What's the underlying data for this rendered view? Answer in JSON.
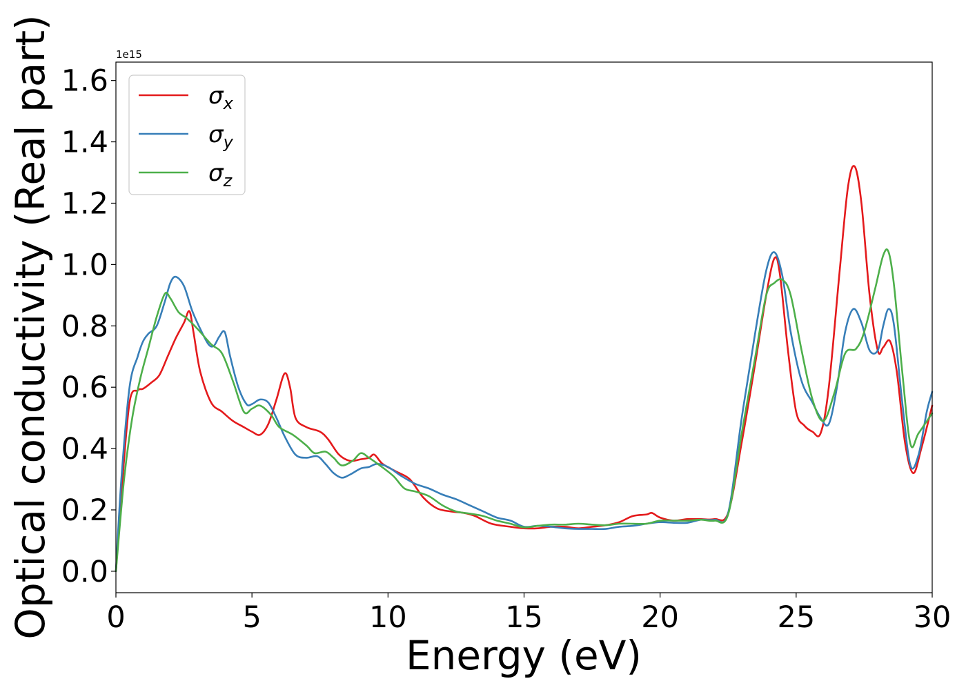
{
  "chart_data": {
    "type": "line",
    "title": "",
    "xlabel": "Energy (eV)",
    "ylabel": "Optical conductivity (Real part)",
    "y_offset_label": "1e15",
    "xlim": [
      0,
      30
    ],
    "ylim": [
      -0.07,
      1.66
    ],
    "xticks": [
      0,
      5,
      10,
      15,
      20,
      25,
      30
    ],
    "xtick_labels": [
      "0",
      "5",
      "10",
      "15",
      "20",
      "25",
      "30"
    ],
    "yticks": [
      0.0,
      0.2,
      0.4,
      0.6,
      0.8,
      1.0,
      1.2,
      1.4,
      1.6
    ],
    "ytick_labels": [
      "0.0",
      "0.2",
      "0.4",
      "0.6",
      "0.8",
      "1.0",
      "1.2",
      "1.4",
      "1.6"
    ],
    "grid": false,
    "legend_position": "upper-left",
    "series": [
      {
        "name": "σx",
        "symbol": "σ",
        "subscript": "x",
        "color": "#e41a1c",
        "points": [
          [
            0,
            0
          ],
          [
            0.2,
            0.25
          ],
          [
            0.5,
            0.55
          ],
          [
            0.8,
            0.59
          ],
          [
            1.0,
            0.595
          ],
          [
            1.3,
            0.615
          ],
          [
            1.6,
            0.64
          ],
          [
            1.9,
            0.7
          ],
          [
            2.2,
            0.76
          ],
          [
            2.5,
            0.81
          ],
          [
            2.7,
            0.848
          ],
          [
            2.85,
            0.78
          ],
          [
            3.1,
            0.65
          ],
          [
            3.5,
            0.55
          ],
          [
            3.9,
            0.52
          ],
          [
            4.3,
            0.49
          ],
          [
            4.7,
            0.47
          ],
          [
            5.0,
            0.455
          ],
          [
            5.3,
            0.445
          ],
          [
            5.6,
            0.48
          ],
          [
            5.9,
            0.56
          ],
          [
            6.2,
            0.645
          ],
          [
            6.4,
            0.6
          ],
          [
            6.6,
            0.5
          ],
          [
            7.0,
            0.47
          ],
          [
            7.5,
            0.455
          ],
          [
            7.8,
            0.43
          ],
          [
            8.2,
            0.38
          ],
          [
            8.6,
            0.36
          ],
          [
            9.0,
            0.365
          ],
          [
            9.3,
            0.37
          ],
          [
            9.5,
            0.38
          ],
          [
            9.8,
            0.35
          ],
          [
            10.3,
            0.325
          ],
          [
            10.8,
            0.3
          ],
          [
            11.3,
            0.24
          ],
          [
            11.8,
            0.205
          ],
          [
            12.3,
            0.195
          ],
          [
            12.8,
            0.19
          ],
          [
            13.2,
            0.18
          ],
          [
            13.8,
            0.155
          ],
          [
            14.5,
            0.145
          ],
          [
            15.0,
            0.14
          ],
          [
            15.5,
            0.14
          ],
          [
            16.0,
            0.145
          ],
          [
            16.5,
            0.145
          ],
          [
            17.0,
            0.14
          ],
          [
            17.5,
            0.145
          ],
          [
            18.0,
            0.15
          ],
          [
            18.5,
            0.16
          ],
          [
            19.0,
            0.18
          ],
          [
            19.5,
            0.185
          ],
          [
            19.7,
            0.19
          ],
          [
            20.0,
            0.175
          ],
          [
            20.5,
            0.165
          ],
          [
            21.0,
            0.17
          ],
          [
            21.5,
            0.17
          ],
          [
            22.0,
            0.17
          ],
          [
            22.5,
            0.19
          ],
          [
            23.0,
            0.42
          ],
          [
            23.5,
            0.68
          ],
          [
            23.9,
            0.9
          ],
          [
            24.2,
            1.02
          ],
          [
            24.4,
            0.97
          ],
          [
            24.7,
            0.72
          ],
          [
            25.0,
            0.52
          ],
          [
            25.3,
            0.475
          ],
          [
            25.6,
            0.455
          ],
          [
            25.9,
            0.45
          ],
          [
            26.2,
            0.6
          ],
          [
            26.6,
            0.98
          ],
          [
            26.9,
            1.25
          ],
          [
            27.15,
            1.32
          ],
          [
            27.4,
            1.2
          ],
          [
            27.7,
            0.9
          ],
          [
            28.0,
            0.72
          ],
          [
            28.2,
            0.73
          ],
          [
            28.45,
            0.75
          ],
          [
            28.7,
            0.65
          ],
          [
            29.0,
            0.42
          ],
          [
            29.3,
            0.32
          ],
          [
            29.6,
            0.4
          ],
          [
            30.0,
            0.54
          ]
        ]
      },
      {
        "name": "σy",
        "symbol": "σ",
        "subscript": "y",
        "color": "#377eb8",
        "points": [
          [
            0,
            0
          ],
          [
            0.2,
            0.3
          ],
          [
            0.5,
            0.6
          ],
          [
            0.8,
            0.7
          ],
          [
            1.0,
            0.75
          ],
          [
            1.2,
            0.775
          ],
          [
            1.5,
            0.8
          ],
          [
            1.8,
            0.88
          ],
          [
            2.0,
            0.94
          ],
          [
            2.2,
            0.96
          ],
          [
            2.5,
            0.93
          ],
          [
            2.8,
            0.85
          ],
          [
            3.1,
            0.79
          ],
          [
            3.4,
            0.74
          ],
          [
            3.6,
            0.735
          ],
          [
            3.8,
            0.765
          ],
          [
            4.0,
            0.78
          ],
          [
            4.2,
            0.7
          ],
          [
            4.5,
            0.6
          ],
          [
            4.8,
            0.545
          ],
          [
            5.0,
            0.545
          ],
          [
            5.3,
            0.56
          ],
          [
            5.6,
            0.55
          ],
          [
            5.9,
            0.5
          ],
          [
            6.2,
            0.44
          ],
          [
            6.6,
            0.38
          ],
          [
            7.0,
            0.37
          ],
          [
            7.4,
            0.375
          ],
          [
            7.7,
            0.35
          ],
          [
            8.0,
            0.32
          ],
          [
            8.3,
            0.305
          ],
          [
            8.6,
            0.315
          ],
          [
            9.0,
            0.335
          ],
          [
            9.3,
            0.34
          ],
          [
            9.6,
            0.35
          ],
          [
            10.0,
            0.34
          ],
          [
            10.5,
            0.31
          ],
          [
            11.0,
            0.285
          ],
          [
            11.5,
            0.27
          ],
          [
            12.0,
            0.25
          ],
          [
            12.5,
            0.235
          ],
          [
            13.0,
            0.215
          ],
          [
            13.5,
            0.195
          ],
          [
            14.0,
            0.175
          ],
          [
            14.5,
            0.165
          ],
          [
            15.0,
            0.145
          ],
          [
            15.5,
            0.148
          ],
          [
            16.0,
            0.145
          ],
          [
            16.5,
            0.14
          ],
          [
            17.0,
            0.138
          ],
          [
            17.5,
            0.138
          ],
          [
            18.0,
            0.138
          ],
          [
            18.5,
            0.145
          ],
          [
            19.0,
            0.148
          ],
          [
            19.5,
            0.155
          ],
          [
            20.0,
            0.16
          ],
          [
            20.5,
            0.158
          ],
          [
            21.0,
            0.158
          ],
          [
            21.5,
            0.168
          ],
          [
            22.0,
            0.168
          ],
          [
            22.5,
            0.19
          ],
          [
            23.0,
            0.5
          ],
          [
            23.5,
            0.78
          ],
          [
            23.9,
            0.98
          ],
          [
            24.2,
            1.04
          ],
          [
            24.5,
            0.96
          ],
          [
            24.8,
            0.78
          ],
          [
            25.2,
            0.62
          ],
          [
            25.6,
            0.55
          ],
          [
            25.9,
            0.5
          ],
          [
            26.2,
            0.48
          ],
          [
            26.5,
            0.6
          ],
          [
            26.8,
            0.78
          ],
          [
            27.1,
            0.855
          ],
          [
            27.4,
            0.81
          ],
          [
            27.7,
            0.72
          ],
          [
            28.0,
            0.72
          ],
          [
            28.2,
            0.8
          ],
          [
            28.4,
            0.855
          ],
          [
            28.6,
            0.8
          ],
          [
            28.9,
            0.55
          ],
          [
            29.2,
            0.345
          ],
          [
            29.5,
            0.38
          ],
          [
            29.8,
            0.52
          ],
          [
            30.0,
            0.585
          ]
        ]
      },
      {
        "name": "σz",
        "symbol": "σ",
        "subscript": "z",
        "color": "#4daf4a",
        "points": [
          [
            0,
            0
          ],
          [
            0.3,
            0.3
          ],
          [
            0.6,
            0.5
          ],
          [
            0.9,
            0.63
          ],
          [
            1.2,
            0.73
          ],
          [
            1.5,
            0.83
          ],
          [
            1.8,
            0.905
          ],
          [
            2.0,
            0.89
          ],
          [
            2.3,
            0.845
          ],
          [
            2.6,
            0.825
          ],
          [
            3.0,
            0.79
          ],
          [
            3.5,
            0.74
          ],
          [
            3.9,
            0.71
          ],
          [
            4.3,
            0.62
          ],
          [
            4.7,
            0.52
          ],
          [
            5.0,
            0.53
          ],
          [
            5.3,
            0.54
          ],
          [
            5.7,
            0.51
          ],
          [
            6.0,
            0.47
          ],
          [
            6.5,
            0.445
          ],
          [
            7.0,
            0.41
          ],
          [
            7.3,
            0.385
          ],
          [
            7.7,
            0.39
          ],
          [
            8.0,
            0.37
          ],
          [
            8.3,
            0.345
          ],
          [
            8.7,
            0.36
          ],
          [
            9.0,
            0.385
          ],
          [
            9.3,
            0.37
          ],
          [
            9.7,
            0.345
          ],
          [
            10.2,
            0.31
          ],
          [
            10.6,
            0.27
          ],
          [
            11.0,
            0.26
          ],
          [
            11.5,
            0.245
          ],
          [
            12.0,
            0.215
          ],
          [
            12.5,
            0.195
          ],
          [
            13.0,
            0.188
          ],
          [
            13.5,
            0.18
          ],
          [
            14.0,
            0.165
          ],
          [
            14.5,
            0.155
          ],
          [
            15.0,
            0.143
          ],
          [
            15.5,
            0.148
          ],
          [
            16.0,
            0.152
          ],
          [
            16.5,
            0.152
          ],
          [
            17.0,
            0.155
          ],
          [
            17.5,
            0.152
          ],
          [
            18.0,
            0.15
          ],
          [
            18.5,
            0.155
          ],
          [
            19.0,
            0.155
          ],
          [
            19.5,
            0.155
          ],
          [
            20.0,
            0.165
          ],
          [
            20.5,
            0.165
          ],
          [
            21.0,
            0.165
          ],
          [
            21.5,
            0.168
          ],
          [
            22.0,
            0.165
          ],
          [
            22.5,
            0.185
          ],
          [
            23.0,
            0.45
          ],
          [
            23.5,
            0.7
          ],
          [
            23.9,
            0.9
          ],
          [
            24.2,
            0.94
          ],
          [
            24.5,
            0.95
          ],
          [
            24.8,
            0.9
          ],
          [
            25.2,
            0.72
          ],
          [
            25.6,
            0.56
          ],
          [
            26.0,
            0.49
          ],
          [
            26.4,
            0.58
          ],
          [
            26.8,
            0.71
          ],
          [
            27.2,
            0.725
          ],
          [
            27.5,
            0.78
          ],
          [
            27.9,
            0.92
          ],
          [
            28.2,
            1.03
          ],
          [
            28.4,
            1.04
          ],
          [
            28.6,
            0.93
          ],
          [
            28.9,
            0.65
          ],
          [
            29.2,
            0.415
          ],
          [
            29.5,
            0.45
          ],
          [
            30.0,
            0.515
          ]
        ]
      }
    ]
  }
}
